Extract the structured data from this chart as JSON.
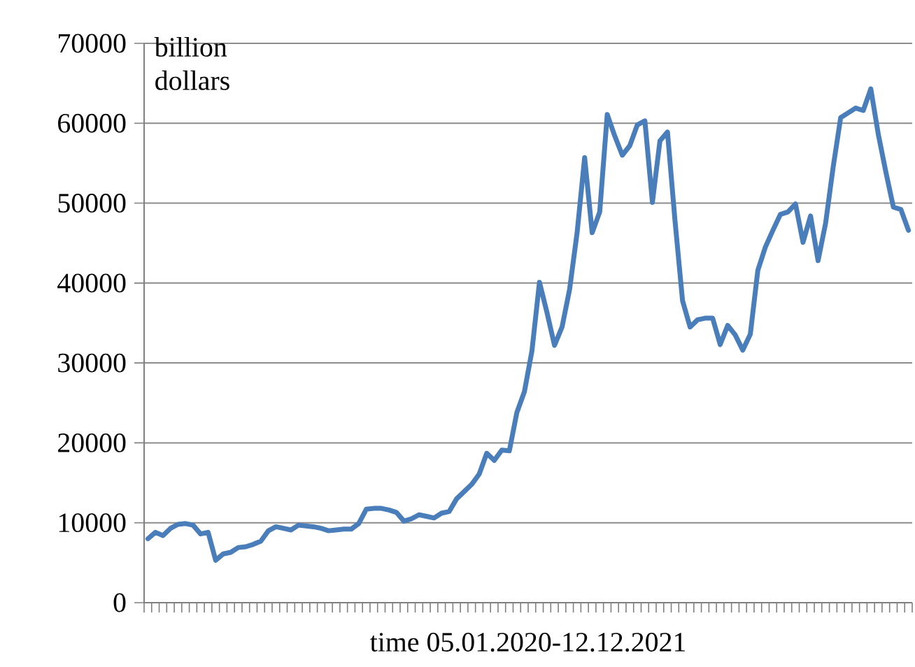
{
  "chart_data": {
    "type": "line",
    "ylabel": "billion dollars",
    "xlabel": "time 05.01.2020-12.12.2021",
    "categories": [
      null,
      null,
      null,
      null,
      null,
      null,
      null,
      null,
      null,
      null,
      null,
      null,
      null,
      null,
      null,
      null,
      null,
      null,
      null,
      null,
      null,
      null,
      null,
      null,
      null,
      null,
      null,
      null,
      null,
      null,
      null,
      null,
      null,
      null,
      null,
      null,
      null,
      null,
      null,
      null,
      null,
      null,
      null,
      null,
      null,
      null,
      null,
      null,
      null,
      null,
      null,
      null,
      null,
      null,
      null,
      null,
      null,
      null,
      null,
      null,
      null,
      null,
      null,
      null,
      null,
      null,
      null,
      null,
      null,
      null,
      null,
      null,
      null,
      null,
      null,
      null,
      null,
      null,
      null,
      null,
      null,
      null,
      null,
      null,
      null,
      null,
      null,
      null,
      null,
      null,
      null,
      null,
      null,
      null,
      null,
      null,
      null,
      null,
      null,
      null,
      null,
      null
    ],
    "series": [
      {
        "color": "#4a7ebb",
        "values": [
          8000,
          8800,
          8400,
          9300,
          9800,
          9900,
          9700,
          8600,
          8800,
          5300,
          6100,
          6300,
          6900,
          7000,
          7300,
          7700,
          9000,
          9500,
          9300,
          9100,
          9700,
          9600,
          9500,
          9300,
          9000,
          9100,
          9200,
          9200,
          9900,
          11700,
          11800,
          11800,
          11600,
          11300,
          10200,
          10500,
          11000,
          10800,
          10600,
          11200,
          11400,
          13000,
          13900,
          14800,
          16100,
          18700,
          17800,
          19100,
          19000,
          23800,
          26400,
          31500,
          40100,
          36300,
          32200,
          34500,
          39200,
          46300,
          55700,
          46300,
          48900,
          61100,
          58400,
          56000,
          57200,
          59800,
          60300,
          50100,
          57800,
          58900,
          47800,
          37800,
          34500,
          35400,
          35600,
          35600,
          32300,
          34700,
          33500,
          31600,
          33600,
          41600,
          44500,
          46600,
          48600,
          48900,
          49900,
          45100,
          48400,
          42800,
          47500,
          54500,
          60700,
          61300,
          61900,
          61600,
          64300,
          58600,
          53900,
          49500,
          49200,
          46600
        ]
      }
    ],
    "ylim": [
      0,
      70000
    ],
    "yticks": [
      0,
      10000,
      20000,
      30000,
      40000,
      50000,
      60000,
      70000
    ],
    "grid": "y",
    "tick_labels": "y",
    "line_style": "solid",
    "marker": "none"
  }
}
